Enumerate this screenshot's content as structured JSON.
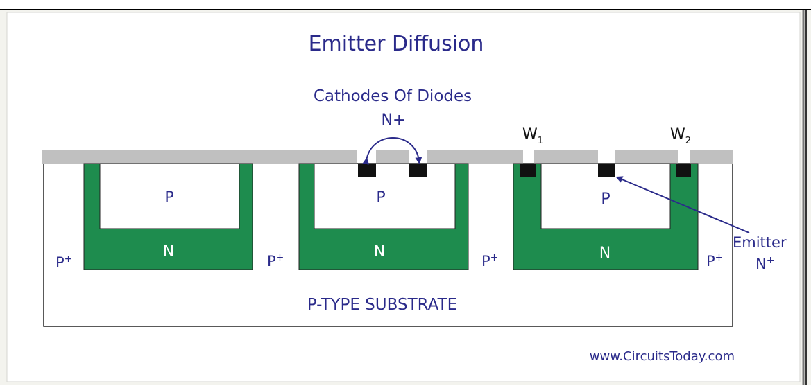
{
  "title": "Emitter Diffusion",
  "annotation": "Cathodes Of Diodes",
  "n_plus_label": "N+",
  "w1": {
    "base": "W",
    "sub": "1"
  },
  "w2": {
    "base": "W",
    "sub": "2"
  },
  "wells": [
    {
      "p_label": "P",
      "n_label": "N",
      "isolation_base": "P",
      "isolation_sup": "+"
    },
    {
      "p_label": "P",
      "n_label": "N",
      "isolation_base": "P",
      "isolation_sup": "+"
    },
    {
      "p_label": "P",
      "n_label": "N",
      "isolation_base": "P",
      "isolation_sup": "+"
    }
  ],
  "right_isolation": {
    "base": "P",
    "sup": "+"
  },
  "emitter": {
    "label": "Emitter",
    "sub_base": "N",
    "sub_sup": "+"
  },
  "substrate_label": "P-TYPE SUBSTRATE",
  "watermark": "www.CircuitsToday.com",
  "colors": {
    "frame_bg": "#f3f3ee",
    "oxide": "#c0c0c0",
    "n_region": "#1e8c4e",
    "diffusion": "#111111",
    "text": "#2a2a8a",
    "outline": "#222222"
  }
}
